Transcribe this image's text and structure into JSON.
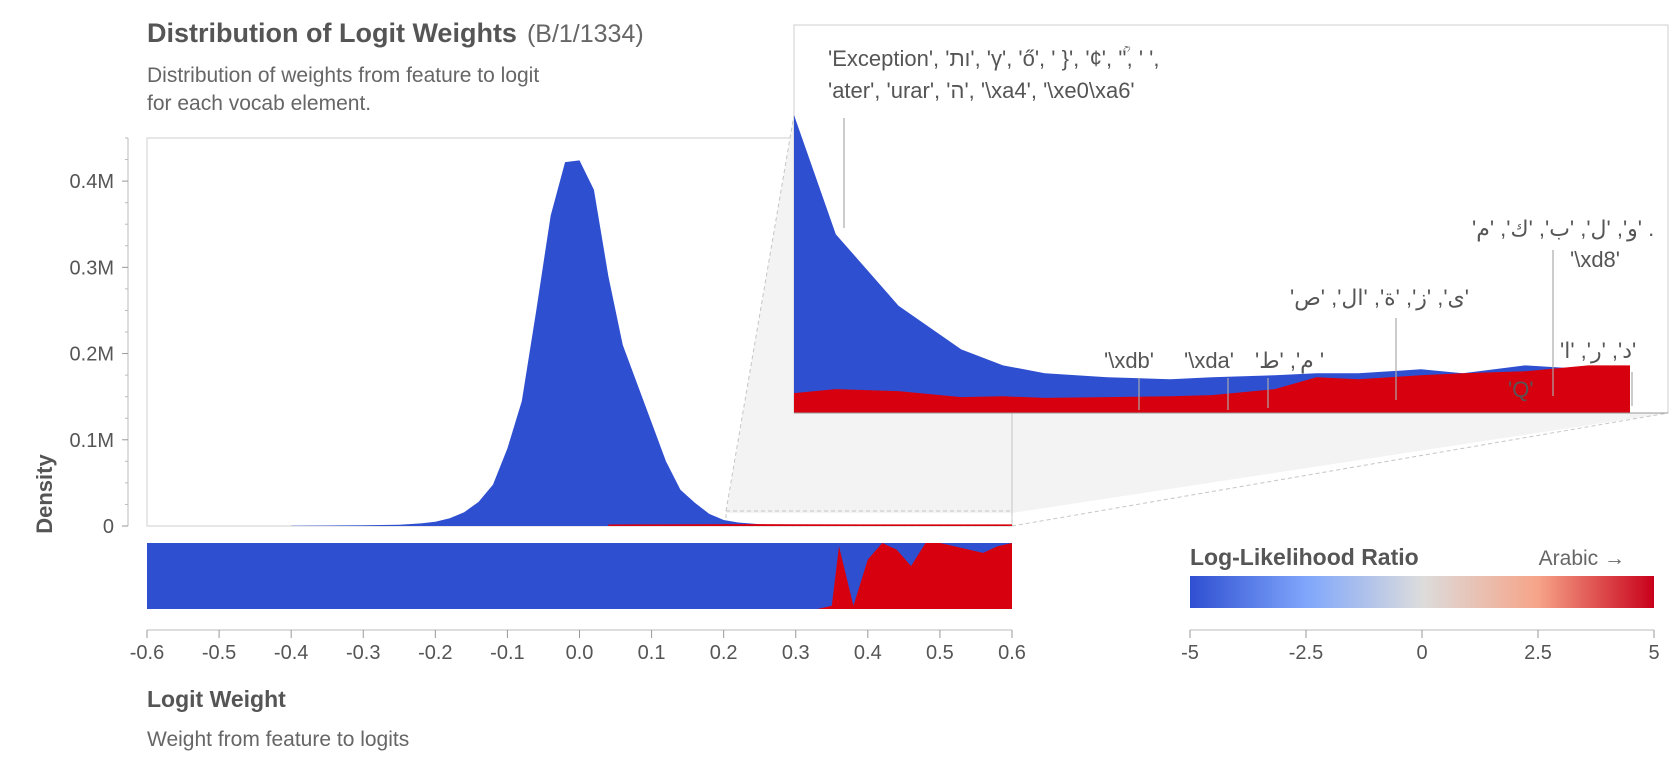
{
  "header": {
    "title": "Distribution of Logit Weights",
    "feature_id": "(B/1/1334)",
    "subtitle_line1": "Distribution of weights from feature to logit",
    "subtitle_line2": "for each vocab element."
  },
  "x_axis": {
    "title": "Logit Weight",
    "subtitle": "Weight from feature to logits"
  },
  "colors": {
    "blue": "#2f4fd1",
    "red": "#d7000f",
    "axis": "#888888",
    "panel": "#f3f3f3"
  },
  "chart_data": [
    {
      "id": "density",
      "type": "area",
      "title": "Distribution of Logit Weights",
      "xlabel": "Logit Weight",
      "ylabel": "Density",
      "xlim": [
        -0.6,
        0.6
      ],
      "ylim": [
        0,
        450000
      ],
      "xticks": [
        "-0.6",
        "-0.5",
        "-0.4",
        "-0.3",
        "-0.2",
        "-0.1",
        "0.0",
        "0.1",
        "0.2",
        "0.3",
        "0.4",
        "0.5",
        "0.6"
      ],
      "yticks": [
        {
          "value": 0,
          "label": "0"
        },
        {
          "value": 100000,
          "label": "0.1M"
        },
        {
          "value": 200000,
          "label": "0.2M"
        },
        {
          "value": 300000,
          "label": "0.3M"
        },
        {
          "value": 400000,
          "label": "0.4M"
        }
      ],
      "x": [
        -0.4,
        -0.3,
        -0.25,
        -0.22,
        -0.2,
        -0.18,
        -0.16,
        -0.14,
        -0.12,
        -0.1,
        -0.08,
        -0.06,
        -0.04,
        -0.02,
        0.0,
        0.02,
        0.04,
        0.06,
        0.08,
        0.1,
        0.12,
        0.14,
        0.16,
        0.18,
        0.2,
        0.22,
        0.25,
        0.3,
        0.4,
        0.5,
        0.6
      ],
      "series": [
        {
          "name": "blue",
          "values": [
            300,
            800,
            1500,
            3000,
            5000,
            9000,
            16000,
            28000,
            48000,
            90000,
            145000,
            250000,
            360000,
            422000,
            424000,
            390000,
            290000,
            210000,
            165000,
            120000,
            75000,
            42000,
            27000,
            14000,
            7000,
            4000,
            2000,
            1000,
            500,
            300,
            200
          ]
        },
        {
          "name": "red",
          "x": [
            0.04,
            0.1,
            0.2,
            0.3,
            0.4,
            0.5,
            0.6
          ],
          "values": [
            0,
            200,
            500,
            300,
            200,
            200,
            200
          ]
        }
      ]
    },
    {
      "id": "zoom_inset",
      "type": "area",
      "description_range": [
        0.2,
        0.6
      ],
      "x": [
        0.2,
        0.22,
        0.25,
        0.28,
        0.3,
        0.32,
        0.35,
        0.38,
        0.4,
        0.43,
        0.45,
        0.47,
        0.5,
        0.52,
        0.55,
        0.58,
        0.6
      ],
      "series": [
        {
          "name": "blue",
          "values": [
            7500,
            4500,
            2700,
            1600,
            1200,
            1000,
            900,
            850,
            900,
            950,
            1000,
            1000,
            1100,
            1000,
            1200,
            1100,
            900
          ]
        },
        {
          "name": "red",
          "values": [
            500,
            600,
            550,
            400,
            420,
            380,
            400,
            420,
            450,
            600,
            900,
            850,
            950,
            1000,
            1050,
            1200,
            1200
          ]
        }
      ],
      "annotations": [
        {
          "line1": "'Exception', 'ות', 'γ', 'ő', ' }', '¢', 'ؒ', '    ',",
          "line2": "'ater', 'urar', 'ה', '\\xa4', '\\xe0\\xa6'"
        },
        {
          "label": "'\\xdb'"
        },
        {
          "label": "'\\xda'"
        },
        {
          "label": "'م', 'ط ' "
        },
        {
          "label": "'ى', 'ز', 'ة', 'ال', 'ص'"
        },
        {
          "label": "'Q'"
        },
        {
          "label": "'و', 'ل', 'ب', 'ك', 'م' ."
        },
        {
          "label": "'\\xd8'"
        },
        {
          "label": "'د', 'ر', 'ا'"
        }
      ]
    },
    {
      "id": "llr_strip",
      "type": "area",
      "x": [
        0.3,
        0.33,
        0.35,
        0.36,
        0.37,
        0.38,
        0.39,
        0.4,
        0.42,
        0.44,
        0.46,
        0.48,
        0.5,
        0.52,
        0.54,
        0.56,
        0.58,
        0.6
      ],
      "red_fraction": [
        0.0,
        0.0,
        0.05,
        0.95,
        0.5,
        0.05,
        0.4,
        0.75,
        1.0,
        0.9,
        0.65,
        1.0,
        1.0,
        0.95,
        0.9,
        0.85,
        0.95,
        1.0
      ]
    },
    {
      "id": "llr_colorbar",
      "type": "heatmap",
      "title": "Log-Likelihood Ratio",
      "direction_label": "Arabic →",
      "range": [
        -5,
        5
      ],
      "ticks": [
        "-5",
        "-2.5",
        "0",
        "2.5",
        "5"
      ],
      "stops": [
        "#2f4fd1",
        "#7fa6fb",
        "#dcdcdc",
        "#f6a488",
        "#c8001a"
      ]
    }
  ]
}
